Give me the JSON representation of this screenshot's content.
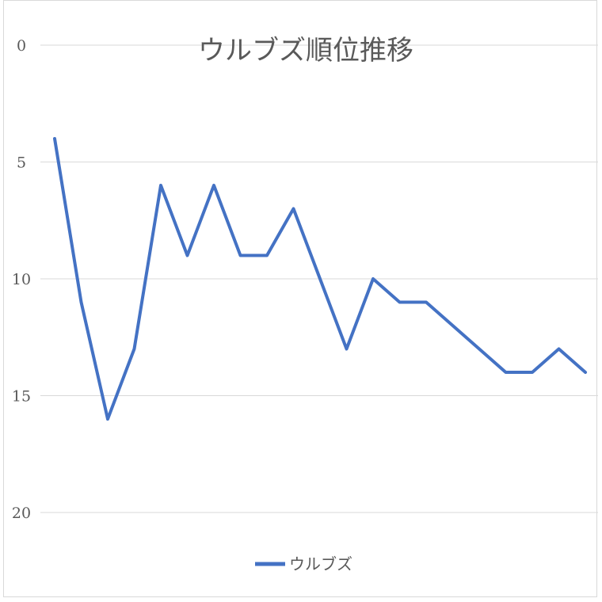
{
  "chart_data": {
    "type": "line",
    "title": "ウルブズ順位推移",
    "xlabel": "",
    "ylabel": "",
    "y_inverted": true,
    "ylim": [
      0,
      20
    ],
    "yticks": [
      0,
      5,
      10,
      15,
      20
    ],
    "ytick_labels": [
      "0",
      "5",
      "10",
      "15",
      "20"
    ],
    "grid": true,
    "legend_position": "bottom",
    "series": [
      {
        "name": "ウルブズ",
        "color": "#4472c4",
        "x": [
          1,
          2,
          3,
          4,
          5,
          6,
          7,
          8,
          9,
          10,
          11,
          12,
          13,
          14,
          15,
          16,
          17,
          18,
          19,
          20,
          21
        ],
        "values": [
          4,
          11,
          16,
          13,
          6,
          9,
          6,
          9,
          9,
          7,
          10,
          13,
          10,
          11,
          11,
          12,
          13,
          14,
          14,
          13,
          14
        ]
      }
    ]
  }
}
